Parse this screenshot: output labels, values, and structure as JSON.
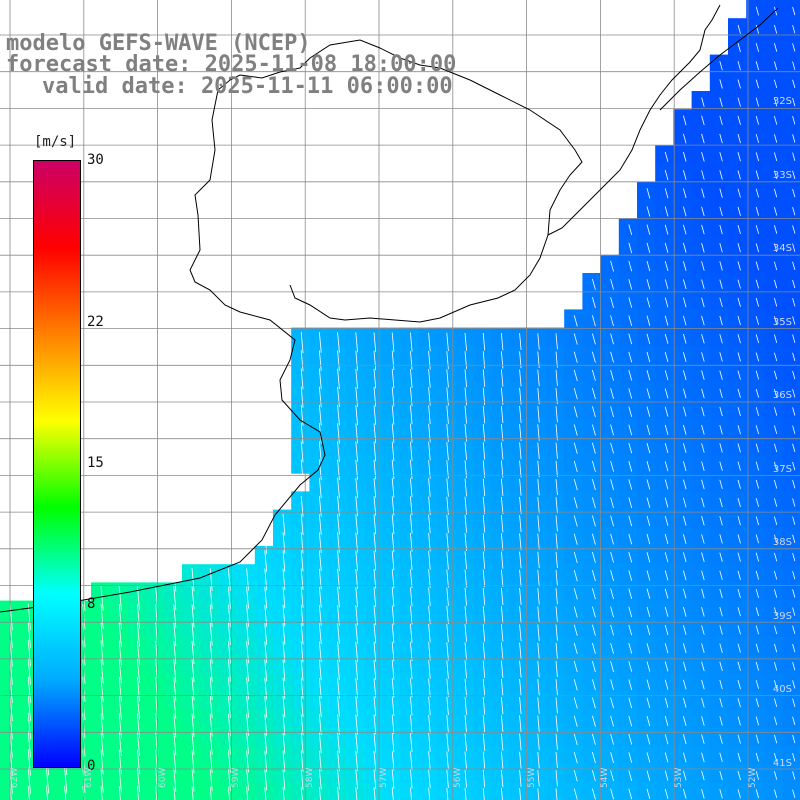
{
  "title": {
    "line1": "modelo GEFS-WAVE (NCEP)",
    "line2": "forecast date: 2025-11-08 18:00:00",
    "line3": "valid date: 2025-11-11 06:00:00"
  },
  "colorbar": {
    "unit": "[m/s]",
    "ticks": [
      "30",
      "22",
      "15",
      "8",
      "0"
    ],
    "tick_values": [
      30,
      22,
      15,
      8,
      0
    ],
    "stops": [
      "#0000ff",
      "#00aaff",
      "#00ffff",
      "#00ff00",
      "#ffff00",
      "#ff8000",
      "#ff0000",
      "#cc0066"
    ]
  },
  "latitude_labels": [
    "32S",
    "33S",
    "34S",
    "35S",
    "36S",
    "37S",
    "38S",
    "39S",
    "40S",
    "41S"
  ],
  "longitude_labels": [
    "62W",
    "61W",
    "60W",
    "59W",
    "58W",
    "57W",
    "56W",
    "55W",
    "54W",
    "53W",
    "52W"
  ],
  "colors": {
    "land": "#ffffff",
    "coast": "#000000",
    "grid": "#888888",
    "arrows": "#ffffff"
  }
}
